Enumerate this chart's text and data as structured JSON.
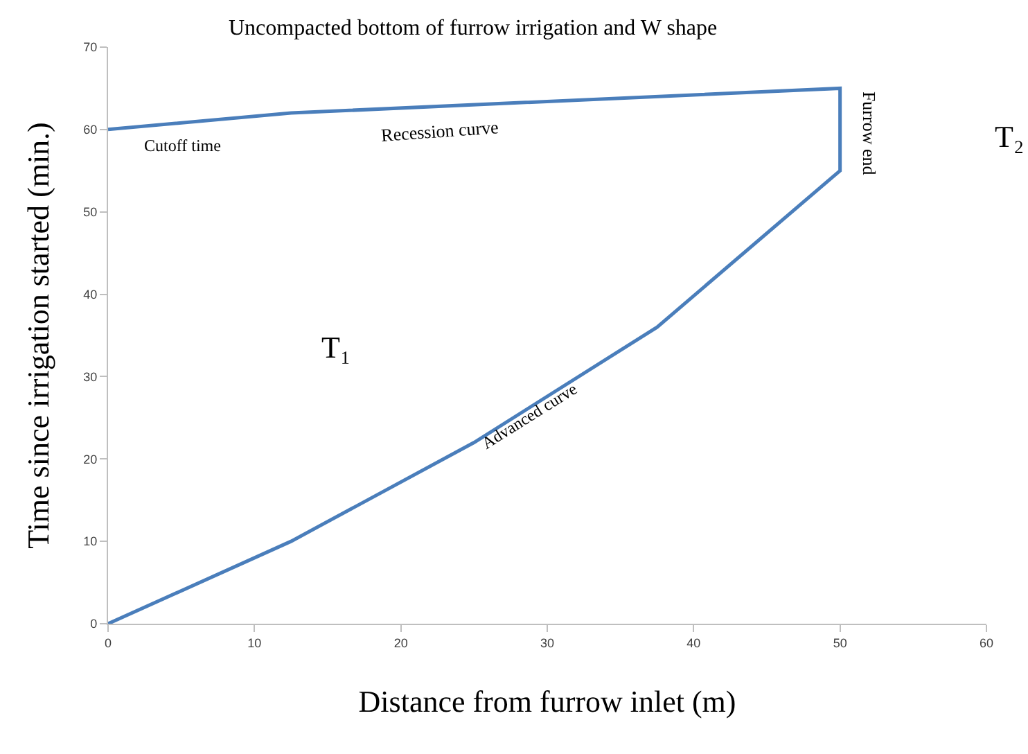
{
  "chart_data": {
    "type": "line",
    "title": "Uncompacted bottom of furrow irrigation and W shape",
    "xlabel": "Distance from furrow inlet (m)",
    "ylabel": "Time since irrigation started (min.)",
    "x": [
      0,
      12.5,
      25,
      37.5,
      50,
      50,
      12.5,
      0
    ],
    "series": [
      {
        "color": "#4a7ebb",
        "values": [
          0,
          10,
          22,
          36,
          55,
          65,
          62,
          60
        ]
      }
    ],
    "xlim": [
      0,
      60
    ],
    "xticks": [
      0,
      10,
      20,
      30,
      40,
      50,
      60
    ],
    "ylim": [
      0,
      70
    ],
    "yticks": [
      0,
      10,
      20,
      30,
      40,
      50,
      60,
      70
    ],
    "grid": false,
    "marker": "none",
    "line_style": "solid",
    "annotations": [
      "Cutoff time",
      "Recession curve",
      "Furrow end",
      "Advanced curve",
      "T₁",
      "T₂"
    ]
  }
}
